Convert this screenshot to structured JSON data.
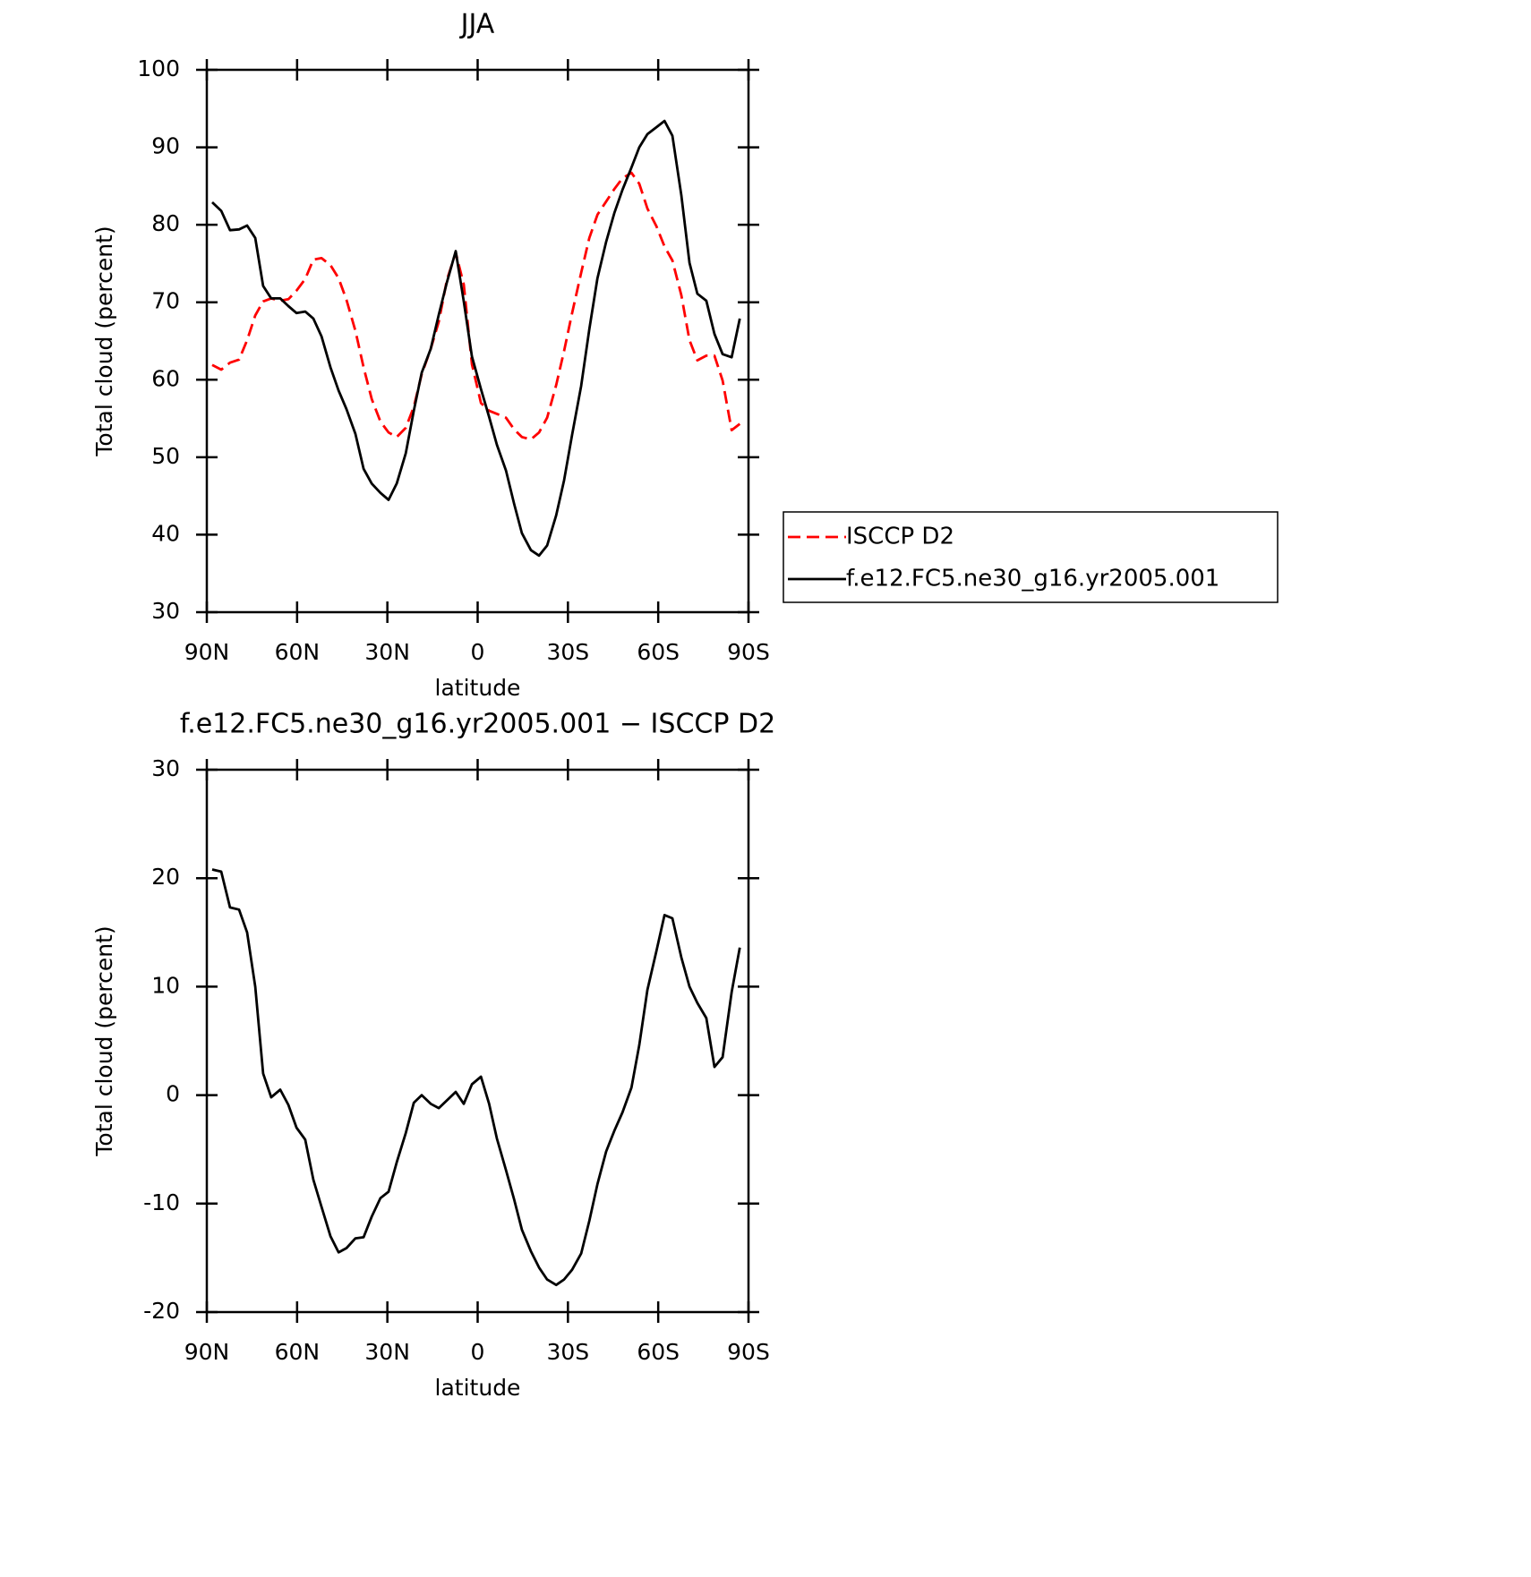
{
  "chart_data": [
    {
      "type": "line",
      "title": "JJA",
      "xlabel": "latitude",
      "ylabel": "Total cloud (percent)",
      "x": [
        88.2,
        85.2,
        82.3,
        79.3,
        76.6,
        73.9,
        71.3,
        68.6,
        65.6,
        62.9,
        60.2,
        57.3,
        54.6,
        51.9,
        48.9,
        46.2,
        43.6,
        40.6,
        37.9,
        35.2,
        32.3,
        29.6,
        26.9,
        23.9,
        21.2,
        18.6,
        15.6,
        12.9,
        10.2,
        7.3,
        4.6,
        1.9,
        -1.1,
        -3.8,
        -6.4,
        -9.4,
        -12.1,
        -14.7,
        -17.7,
        -20.4,
        -23.1,
        -26.1,
        -28.7,
        -31.4,
        -34.4,
        -37.1,
        -39.8,
        -42.7,
        -45.4,
        -48.1,
        -51.1,
        -53.7,
        -56.4,
        -59.4,
        -62.1,
        -64.7,
        -67.7,
        -70.4,
        -73.0,
        -76.0,
        -78.7,
        -81.4,
        -84.4,
        -87.1
      ],
      "series": [
        {
          "name": "ISCCP D2",
          "color": "#ff0000",
          "dash": true,
          "values": [
            61.9,
            61.3,
            62.2,
            62.6,
            65.1,
            68.3,
            70.1,
            70.5,
            70.2,
            70.4,
            71.5,
            73.0,
            75.5,
            75.7,
            74.8,
            73.1,
            70.3,
            66.3,
            61.6,
            57.5,
            54.6,
            53.2,
            52.6,
            53.8,
            56.5,
            60.7,
            64.0,
            67.5,
            72.9,
            76.4,
            72.3,
            62.0,
            57.0,
            56.0,
            55.6,
            55.1,
            53.6,
            52.6,
            52.3,
            53.2,
            55.1,
            59.3,
            63.7,
            68.6,
            73.8,
            78.3,
            81.3,
            83.0,
            84.6,
            86.0,
            86.7,
            85.3,
            82.1,
            79.8,
            77.2,
            75.4,
            70.9,
            65.1,
            62.5,
            63.1,
            63.1,
            59.9,
            53.5,
            54.3
          ]
        },
        {
          "name": "f.e12.FC5.ne30_g16.yr2005.001",
          "color": "#000000",
          "dash": false,
          "values": [
            82.9,
            81.8,
            79.3,
            79.4,
            79.9,
            78.3,
            72.1,
            70.5,
            70.5,
            69.5,
            68.6,
            68.8,
            67.9,
            65.6,
            61.6,
            58.6,
            56.2,
            53.0,
            48.5,
            46.6,
            45.4,
            44.5,
            46.6,
            50.5,
            56.0,
            60.9,
            64.0,
            68.4,
            72.6,
            76.6,
            70.1,
            63.0,
            58.8,
            55.2,
            51.6,
            48.3,
            44.0,
            40.2,
            38.0,
            37.3,
            38.6,
            42.5,
            47.0,
            52.9,
            59.2,
            66.5,
            73.1,
            77.8,
            81.5,
            84.5,
            87.4,
            90.0,
            91.7,
            92.6,
            93.4,
            91.5,
            83.8,
            75.1,
            71.1,
            70.2,
            65.9,
            63.3,
            62.9,
            67.9
          ]
        }
      ],
      "xlim": [
        90,
        -90
      ],
      "xticks": [
        {
          "value": 90,
          "label": "90N"
        },
        {
          "value": 60,
          "label": "60N"
        },
        {
          "value": 30,
          "label": "30N"
        },
        0,
        {
          "value": -30,
          "label": "30S"
        },
        {
          "value": -60,
          "label": "60S"
        },
        {
          "value": -90,
          "label": "90S"
        }
      ],
      "ylim": [
        30,
        100
      ],
      "yticks": [
        30,
        40,
        50,
        60,
        70,
        80,
        90,
        100
      ]
    },
    {
      "type": "line",
      "title": "f.e12.FC5.ne30_g16.yr2005.001 − ISCCP D2",
      "xlabel": "latitude",
      "ylabel": "Total cloud (percent)",
      "x": [
        88.2,
        85.2,
        82.3,
        79.3,
        76.6,
        73.9,
        71.3,
        68.6,
        65.6,
        62.9,
        60.2,
        57.3,
        54.6,
        51.9,
        48.9,
        46.2,
        43.6,
        40.6,
        37.9,
        35.2,
        32.3,
        29.6,
        26.9,
        23.9,
        21.2,
        18.6,
        15.6,
        12.9,
        7.3,
        4.6,
        1.9,
        -1.1,
        -3.8,
        -6.4,
        -9.4,
        -12.1,
        -14.7,
        -17.7,
        -20.4,
        -23.1,
        -26.1,
        -28.7,
        -31.4,
        -34.4,
        -37.1,
        -39.8,
        -42.7,
        -45.4,
        -48.1,
        -51.1,
        -53.7,
        -56.4,
        -59.4,
        -62.1,
        -64.7,
        -67.7,
        -70.4,
        -73.0,
        -76.0,
        -78.7,
        -81.4,
        -84.4,
        -87.1
      ],
      "series": [
        {
          "color": "#000000",
          "dash": false,
          "values": [
            20.8,
            20.6,
            17.3,
            17.1,
            15.0,
            10.0,
            2.0,
            -0.2,
            0.5,
            -0.9,
            -3.0,
            -4.1,
            -7.8,
            -10.3,
            -13.0,
            -14.5,
            -14.1,
            -13.2,
            -13.1,
            -11.2,
            -9.5,
            -8.9,
            -6.2,
            -3.5,
            -0.7,
            0.0,
            -0.8,
            -1.2,
            0.3,
            -0.8,
            1.0,
            1.7,
            -0.8,
            -4.0,
            -6.9,
            -9.6,
            -12.4,
            -14.4,
            -15.9,
            -17.0,
            -17.5,
            -17.0,
            -16.1,
            -14.6,
            -11.6,
            -8.2,
            -5.2,
            -3.3,
            -1.6,
            0.7,
            4.6,
            9.7,
            13.3,
            16.6,
            16.3,
            12.7,
            10.0,
            8.5,
            7.1,
            2.6,
            3.5,
            9.5,
            13.6
          ]
        }
      ],
      "xlim": [
        90,
        -90
      ],
      "xticks": [
        {
          "value": 90,
          "label": "90N"
        },
        {
          "value": 60,
          "label": "60N"
        },
        {
          "value": 30,
          "label": "30N"
        },
        0,
        {
          "value": -30,
          "label": "30S"
        },
        {
          "value": -60,
          "label": "60S"
        },
        {
          "value": -90,
          "label": "90S"
        }
      ],
      "ylim": [
        -20,
        30
      ],
      "yticks": [
        -20,
        -10,
        0,
        10,
        20,
        30
      ]
    }
  ]
}
